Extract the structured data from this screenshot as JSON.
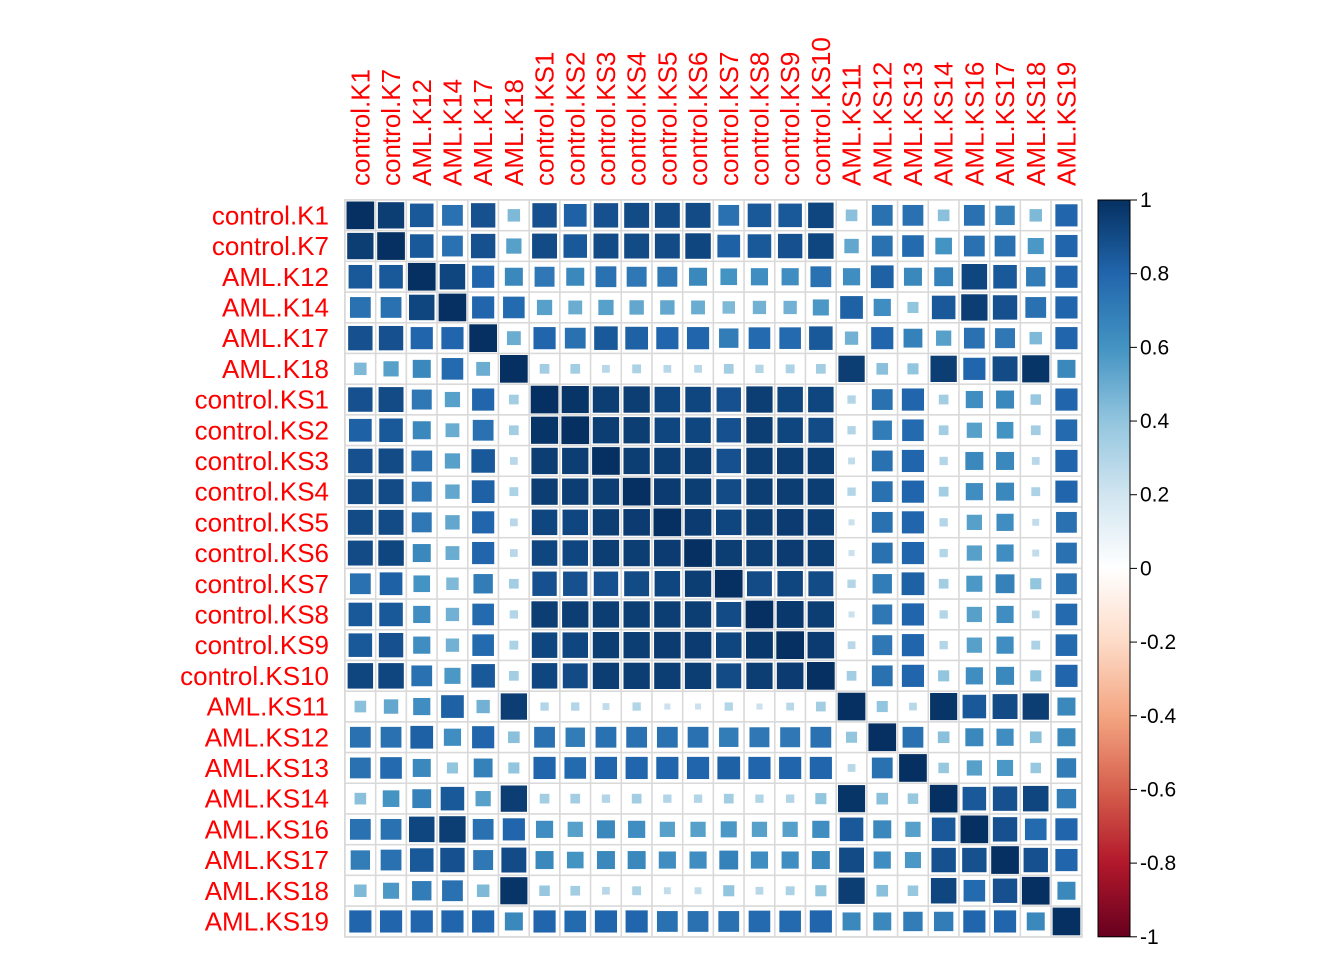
{
  "chart_data": {
    "type": "heatmap",
    "title": "",
    "row_labels": [
      "control.K1",
      "control.K7",
      "AML.K12",
      "AML.K14",
      "AML.K17",
      "AML.K18",
      "control.KS1",
      "control.KS2",
      "control.KS3",
      "control.KS4",
      "control.KS5",
      "control.KS6",
      "control.KS7",
      "control.KS8",
      "control.KS9",
      "control.KS10",
      "AML.KS11",
      "AML.KS12",
      "AML.KS13",
      "AML.KS14",
      "AML.KS16",
      "AML.KS17",
      "AML.KS18",
      "AML.KS19"
    ],
    "col_labels": [
      "control.K1",
      "control.K7",
      "AML.K12",
      "AML.K14",
      "AML.K17",
      "AML.K18",
      "control.KS1",
      "control.KS2",
      "control.KS3",
      "control.KS4",
      "control.KS5",
      "control.KS6",
      "control.KS7",
      "control.KS8",
      "control.KS9",
      "control.KS10",
      "AML.KS11",
      "AML.KS12",
      "AML.KS13",
      "AML.KS14",
      "AML.KS16",
      "AML.KS17",
      "AML.KS18",
      "AML.KS19"
    ],
    "values": [
      [
        1.0,
        0.95,
        0.85,
        0.75,
        0.88,
        0.45,
        0.88,
        0.82,
        0.88,
        0.9,
        0.9,
        0.9,
        0.75,
        0.85,
        0.85,
        0.92,
        0.42,
        0.75,
        0.75,
        0.42,
        0.75,
        0.7,
        0.45,
        0.8
      ],
      [
        0.95,
        1.0,
        0.85,
        0.75,
        0.88,
        0.55,
        0.9,
        0.85,
        0.9,
        0.9,
        0.9,
        0.92,
        0.82,
        0.85,
        0.88,
        0.92,
        0.52,
        0.75,
        0.78,
        0.6,
        0.75,
        0.75,
        0.58,
        0.8
      ],
      [
        0.85,
        0.85,
        1.0,
        0.92,
        0.8,
        0.65,
        0.72,
        0.65,
        0.75,
        0.72,
        0.72,
        0.65,
        0.6,
        0.62,
        0.62,
        0.75,
        0.62,
        0.82,
        0.65,
        0.68,
        0.92,
        0.85,
        0.7,
        0.8
      ],
      [
        0.75,
        0.75,
        0.92,
        1.0,
        0.8,
        0.78,
        0.55,
        0.5,
        0.55,
        0.52,
        0.52,
        0.5,
        0.45,
        0.48,
        0.48,
        0.58,
        0.82,
        0.62,
        0.4,
        0.85,
        0.95,
        0.88,
        0.75,
        0.8
      ],
      [
        0.88,
        0.88,
        0.8,
        0.8,
        1.0,
        0.5,
        0.8,
        0.75,
        0.85,
        0.82,
        0.8,
        0.8,
        0.7,
        0.78,
        0.78,
        0.85,
        0.48,
        0.8,
        0.68,
        0.55,
        0.75,
        0.72,
        0.45,
        0.8
      ],
      [
        0.45,
        0.55,
        0.65,
        0.78,
        0.5,
        1.0,
        0.35,
        0.35,
        0.28,
        0.32,
        0.28,
        0.28,
        0.35,
        0.3,
        0.32,
        0.35,
        0.95,
        0.42,
        0.4,
        0.95,
        0.8,
        0.9,
        0.98,
        0.65
      ],
      [
        0.88,
        0.9,
        0.72,
        0.55,
        0.8,
        0.35,
        1.0,
        0.98,
        0.95,
        0.95,
        0.92,
        0.92,
        0.88,
        0.95,
        0.92,
        0.92,
        0.3,
        0.75,
        0.8,
        0.35,
        0.62,
        0.65,
        0.38,
        0.8
      ],
      [
        0.82,
        0.85,
        0.65,
        0.5,
        0.75,
        0.35,
        0.98,
        1.0,
        0.95,
        0.95,
        0.92,
        0.92,
        0.88,
        0.95,
        0.92,
        0.9,
        0.3,
        0.7,
        0.78,
        0.35,
        0.55,
        0.6,
        0.35,
        0.78
      ],
      [
        0.88,
        0.9,
        0.75,
        0.55,
        0.85,
        0.28,
        0.95,
        0.95,
        1.0,
        0.95,
        0.95,
        0.95,
        0.88,
        0.95,
        0.95,
        0.95,
        0.25,
        0.75,
        0.8,
        0.3,
        0.65,
        0.65,
        0.28,
        0.8
      ],
      [
        0.9,
        0.9,
        0.72,
        0.52,
        0.82,
        0.32,
        0.95,
        0.95,
        0.95,
        1.0,
        0.96,
        0.95,
        0.9,
        0.95,
        0.95,
        0.95,
        0.3,
        0.75,
        0.8,
        0.35,
        0.62,
        0.65,
        0.32,
        0.8
      ],
      [
        0.9,
        0.9,
        0.72,
        0.52,
        0.8,
        0.28,
        0.92,
        0.92,
        0.95,
        0.96,
        1.0,
        0.96,
        0.92,
        0.95,
        0.96,
        0.95,
        0.22,
        0.75,
        0.8,
        0.3,
        0.55,
        0.62,
        0.25,
        0.75
      ],
      [
        0.9,
        0.92,
        0.65,
        0.5,
        0.8,
        0.28,
        0.92,
        0.92,
        0.95,
        0.95,
        0.96,
        1.0,
        0.95,
        0.95,
        0.96,
        0.95,
        0.22,
        0.75,
        0.8,
        0.3,
        0.55,
        0.62,
        0.25,
        0.75
      ],
      [
        0.75,
        0.82,
        0.6,
        0.45,
        0.7,
        0.35,
        0.88,
        0.88,
        0.88,
        0.9,
        0.92,
        0.95,
        1.0,
        0.9,
        0.92,
        0.9,
        0.3,
        0.7,
        0.82,
        0.35,
        0.58,
        0.68,
        0.4,
        0.75
      ],
      [
        0.85,
        0.85,
        0.62,
        0.48,
        0.78,
        0.3,
        0.95,
        0.95,
        0.95,
        0.95,
        0.95,
        0.95,
        0.9,
        1.0,
        0.97,
        0.95,
        0.22,
        0.72,
        0.8,
        0.3,
        0.55,
        0.62,
        0.28,
        0.78
      ],
      [
        0.85,
        0.88,
        0.62,
        0.48,
        0.78,
        0.32,
        0.92,
        0.92,
        0.95,
        0.95,
        0.96,
        0.96,
        0.92,
        0.97,
        1.0,
        0.96,
        0.28,
        0.72,
        0.8,
        0.3,
        0.55,
        0.62,
        0.32,
        0.78
      ],
      [
        0.92,
        0.92,
        0.75,
        0.58,
        0.85,
        0.35,
        0.92,
        0.9,
        0.95,
        0.95,
        0.95,
        0.95,
        0.9,
        0.95,
        0.96,
        1.0,
        0.35,
        0.75,
        0.8,
        0.4,
        0.62,
        0.65,
        0.4,
        0.8
      ],
      [
        0.42,
        0.52,
        0.62,
        0.82,
        0.48,
        0.95,
        0.3,
        0.3,
        0.25,
        0.3,
        0.22,
        0.22,
        0.3,
        0.22,
        0.28,
        0.35,
        1.0,
        0.4,
        0.28,
        0.98,
        0.85,
        0.9,
        0.95,
        0.65
      ],
      [
        0.75,
        0.75,
        0.82,
        0.62,
        0.8,
        0.42,
        0.75,
        0.7,
        0.75,
        0.75,
        0.75,
        0.75,
        0.7,
        0.72,
        0.72,
        0.75,
        0.4,
        1.0,
        0.75,
        0.42,
        0.65,
        0.62,
        0.42,
        0.65
      ],
      [
        0.75,
        0.78,
        0.65,
        0.4,
        0.68,
        0.4,
        0.8,
        0.78,
        0.8,
        0.8,
        0.8,
        0.8,
        0.82,
        0.8,
        0.8,
        0.8,
        0.28,
        0.75,
        1.0,
        0.38,
        0.55,
        0.58,
        0.38,
        0.7
      ],
      [
        0.42,
        0.6,
        0.68,
        0.85,
        0.55,
        0.95,
        0.35,
        0.35,
        0.3,
        0.35,
        0.3,
        0.3,
        0.35,
        0.3,
        0.3,
        0.4,
        0.98,
        0.42,
        0.38,
        1.0,
        0.85,
        0.88,
        0.92,
        0.7
      ],
      [
        0.75,
        0.75,
        0.92,
        0.95,
        0.75,
        0.8,
        0.62,
        0.55,
        0.65,
        0.62,
        0.55,
        0.55,
        0.58,
        0.55,
        0.55,
        0.62,
        0.85,
        0.65,
        0.55,
        0.85,
        1.0,
        0.88,
        0.78,
        0.8
      ],
      [
        0.7,
        0.75,
        0.85,
        0.88,
        0.72,
        0.9,
        0.65,
        0.6,
        0.65,
        0.65,
        0.62,
        0.62,
        0.68,
        0.62,
        0.62,
        0.65,
        0.9,
        0.62,
        0.58,
        0.88,
        0.88,
        1.0,
        0.88,
        0.8
      ],
      [
        0.45,
        0.58,
        0.7,
        0.75,
        0.45,
        0.98,
        0.38,
        0.35,
        0.28,
        0.32,
        0.25,
        0.25,
        0.4,
        0.28,
        0.32,
        0.4,
        0.95,
        0.42,
        0.38,
        0.92,
        0.78,
        0.88,
        1.0,
        0.65
      ],
      [
        0.8,
        0.8,
        0.8,
        0.8,
        0.8,
        0.65,
        0.8,
        0.78,
        0.8,
        0.8,
        0.75,
        0.75,
        0.75,
        0.78,
        0.78,
        0.8,
        0.65,
        0.65,
        0.7,
        0.7,
        0.8,
        0.8,
        0.65,
        1.0
      ]
    ],
    "colorbar": {
      "ticks": [
        "1",
        "0.8",
        "0.6",
        "0.4",
        "0.2",
        "0",
        "-0.2",
        "-0.4",
        "-0.6",
        "-0.8",
        "-1"
      ],
      "range": [
        -1,
        1
      ],
      "colors": [
        "#67001F",
        "#B2182B",
        "#D6604D",
        "#F4A582",
        "#FDDBC7",
        "#FFFFFF",
        "#D1E5F0",
        "#92C5DE",
        "#4393C3",
        "#2166AC",
        "#053061"
      ]
    },
    "label_color": "#FF0000",
    "grid_color": "#D9D9D9"
  }
}
